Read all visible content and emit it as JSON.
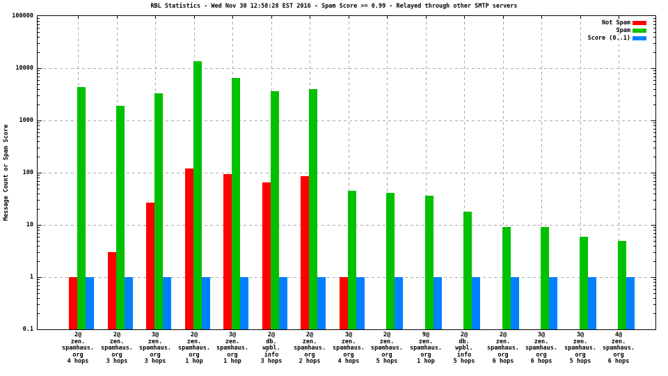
{
  "chart_data": {
    "type": "bar",
    "title": "RBL Statistics - Wed Nov 30 12:58:28 EST 2016 - Spam Score >= 0.99 - Relayed through other SMTP servers",
    "ylabel": "Message Count or Spam Score",
    "y_scale": "log",
    "ylim": [
      0.1,
      100000
    ],
    "y_ticks": [
      "100000",
      "10000",
      "1000",
      "100",
      "10",
      "1",
      "0.1"
    ],
    "grid": true,
    "legend_position": "top-right-inside",
    "legend": [
      {
        "label": "Not Spam",
        "color": "#ff0000"
      },
      {
        "label": "Spam",
        "color": "#00c000"
      },
      {
        "label": "Score (0..1)",
        "color": "#0080ff"
      }
    ],
    "categories": [
      "2@ zen.spamhaus.org 4 hops",
      "2@ zen.spamhaus.org 3 hops",
      "3@ zen.spamhaus.org 3 hops",
      "2@ zen.spamhaus.org 1 hop",
      "3@ zen.spamhaus.org 1 hop",
      "2@ db.wpbl.info 3 hops",
      "2@ zen.spamhaus.org 2 hops",
      "3@ zen.spamhaus.org 4 hops",
      "2@ zen.spamhaus.org 5 hops",
      "9@ zen.spamhaus.org 1 hop",
      "2@ db.wpbl.info 5 hops",
      "2@ zen.spamhaus.org 6 hops",
      "3@ zen.spamhaus.org 6 hops",
      "3@ zen.spamhaus.org 5 hops",
      "4@ zen.spamhaus.org 6 hops"
    ],
    "category_lines": [
      [
        "2@",
        "zen.",
        "spamhaus.",
        "org",
        "4 hops"
      ],
      [
        "2@",
        "zen.",
        "spamhaus.",
        "org",
        "3 hops"
      ],
      [
        "3@",
        "zen.",
        "spamhaus.",
        "org",
        "3 hops"
      ],
      [
        "2@",
        "zen.",
        "spamhaus.",
        "org",
        "1 hop"
      ],
      [
        "3@",
        "zen.",
        "spamhaus.",
        "org",
        "1 hop"
      ],
      [
        "2@",
        "db.",
        "wpbl.",
        "info",
        "3 hops"
      ],
      [
        "2@",
        "zen.",
        "spamhaus.",
        "org",
        "2 hops"
      ],
      [
        "3@",
        "zen.",
        "spamhaus.",
        "org",
        "4 hops"
      ],
      [
        "2@",
        "zen.",
        "spamhaus.",
        "org",
        "5 hops"
      ],
      [
        "9@",
        "zen.",
        "spamhaus.",
        "org",
        "1 hop"
      ],
      [
        "2@",
        "db.",
        "wpbl.",
        "info",
        "5 hops"
      ],
      [
        "2@",
        "zen.",
        "spamhaus.",
        "org",
        "6 hops"
      ],
      [
        "3@",
        "zen.",
        "spamhaus.",
        "org",
        "6 hops"
      ],
      [
        "3@",
        "zen.",
        "spamhaus.",
        "org",
        "5 hops"
      ],
      [
        "4@",
        "zen.",
        "spamhaus.",
        "org",
        "6 hops"
      ]
    ],
    "series": [
      {
        "name": "Not Spam",
        "color": "#ff0000",
        "values": [
          1,
          3,
          27,
          120,
          95,
          65,
          85,
          1,
          null,
          null,
          null,
          null,
          null,
          null,
          null
        ]
      },
      {
        "name": "Spam",
        "color": "#00c000",
        "values": [
          4300,
          1900,
          3300,
          13500,
          6500,
          3600,
          4000,
          45,
          41,
          36,
          18,
          9,
          9,
          6,
          5
        ]
      },
      {
        "name": "Score (0..1)",
        "color": "#0080ff",
        "values": [
          1,
          1,
          1,
          1,
          1,
          1,
          1,
          1,
          1,
          1,
          1,
          1,
          1,
          1,
          1
        ]
      }
    ]
  }
}
